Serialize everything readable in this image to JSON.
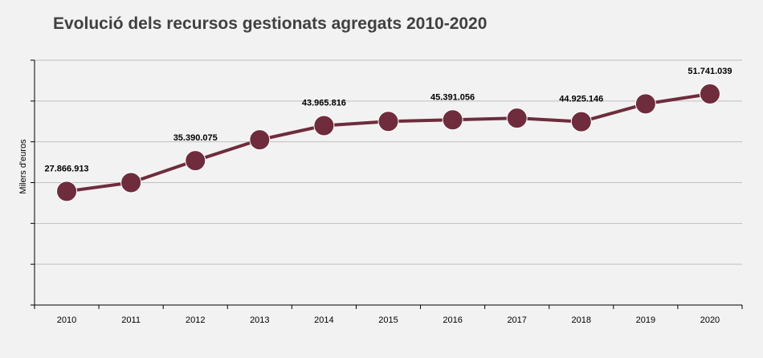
{
  "title": "Evolució dels recursos gestionats agregats 2010-2020",
  "chart_data": {
    "type": "line",
    "title": "Evolució dels recursos gestionats agregats 2010-2020",
    "xlabel": "",
    "ylabel": "Milers d'euros",
    "categories": [
      "2010",
      "2011",
      "2012",
      "2013",
      "2014",
      "2015",
      "2016",
      "2017",
      "2018",
      "2019",
      "2020"
    ],
    "series": [
      {
        "values": [
          27866913,
          30000000,
          35390075,
          40500000,
          43965816,
          45000000,
          45391056,
          45800000,
          44925146,
          49300000,
          51741039
        ],
        "data_labels": [
          "27.866.913",
          "",
          "35.390.075",
          "",
          "43.965.816",
          "",
          "45.391.056",
          "",
          "44.925.146",
          "",
          "51.741.039"
        ]
      }
    ],
    "ylim": [
      0,
      60000000
    ],
    "y_ticks": [
      0,
      10000000,
      20000000,
      30000000,
      40000000,
      50000000,
      60000000
    ],
    "y_tick_labels_visible": false,
    "grid": true,
    "legend": "none",
    "colors": {
      "line": "#6e2c3c",
      "marker": "#6e2c3c",
      "gridline": "#bfbfbf",
      "axis": "#000000",
      "background": "#f2f2f2"
    }
  }
}
